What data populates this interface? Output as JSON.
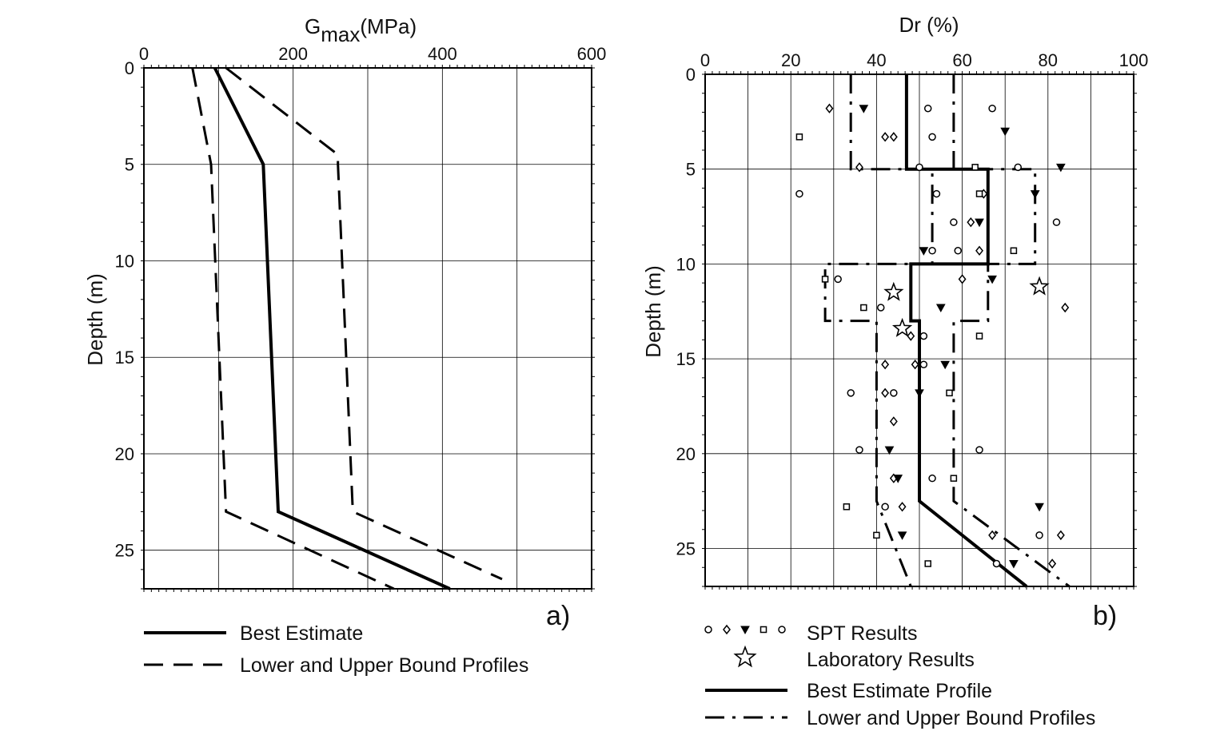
{
  "chart_data": [
    {
      "id": "a",
      "type": "line",
      "panel_label": "a)",
      "xlabel": {
        "main": "G",
        "sub": "max",
        "units": "(MPa)"
      },
      "ylabel": "Depth (m)",
      "xlim": [
        0,
        600
      ],
      "ylim": [
        0,
        27
      ],
      "xticks": [
        0,
        200,
        400,
        600
      ],
      "yticks": [
        0,
        5,
        10,
        15,
        20,
        25
      ],
      "grid": true,
      "series": [
        {
          "name": "Best Estimate",
          "style": "solid",
          "points": [
            [
              95,
              0
            ],
            [
              160,
              5
            ],
            [
              180,
              23
            ],
            [
              410,
              27
            ]
          ]
        },
        {
          "name": "Lower Bound Profile",
          "style": "dashed",
          "points": [
            [
              65,
              0
            ],
            [
              90,
              5
            ],
            [
              110,
              23
            ],
            [
              335,
              27
            ]
          ]
        },
        {
          "name": "Upper Bound Profile",
          "style": "dashed",
          "points": [
            [
              110,
              0
            ],
            [
              260,
              4.5
            ],
            [
              260,
              5
            ],
            [
              280,
              23
            ],
            [
              480,
              26.5
            ]
          ]
        }
      ],
      "legend": [
        {
          "label": "Best Estimate",
          "style": "solid"
        },
        {
          "label": "Lower and Upper Bound Profiles",
          "style": "dashed"
        }
      ]
    },
    {
      "id": "b",
      "type": "scatter",
      "panel_label": "b)",
      "xlabel": "Dr (%)",
      "ylabel": "Depth (m)",
      "xlim": [
        0,
        100
      ],
      "ylim": [
        0,
        27
      ],
      "xticks": [
        0,
        20,
        40,
        60,
        80,
        100
      ],
      "yticks": [
        0,
        5,
        10,
        15,
        20,
        25
      ],
      "grid": true,
      "best_estimate": [
        [
          47,
          0
        ],
        [
          47,
          5
        ],
        [
          66,
          5
        ],
        [
          66,
          10
        ],
        [
          48,
          10
        ],
        [
          48,
          13
        ],
        [
          50,
          13
        ],
        [
          50,
          22.5
        ],
        [
          75,
          27
        ]
      ],
      "lower_bound": [
        [
          34,
          0
        ],
        [
          34,
          5
        ],
        [
          53,
          5
        ],
        [
          53,
          10
        ],
        [
          28,
          10
        ],
        [
          28,
          13
        ],
        [
          40,
          13
        ],
        [
          40,
          22.5
        ],
        [
          48,
          27
        ]
      ],
      "upper_bound": [
        [
          58,
          0
        ],
        [
          58,
          5
        ],
        [
          77,
          5
        ],
        [
          77,
          10
        ],
        [
          66,
          10
        ],
        [
          66,
          13
        ],
        [
          58,
          13
        ],
        [
          58,
          22.5
        ],
        [
          85,
          27
        ]
      ],
      "spt_results": {
        "circle": [
          [
            52,
            1.8
          ],
          [
            67,
            1.8
          ],
          [
            53,
            3.3
          ],
          [
            50,
            4.9
          ],
          [
            22,
            6.3
          ],
          [
            54,
            6.3
          ],
          [
            58,
            7.8
          ],
          [
            82,
            7.8
          ],
          [
            53,
            9.3
          ],
          [
            59,
            9.3
          ],
          [
            31,
            10.8
          ],
          [
            41,
            12.3
          ],
          [
            51,
            13.8
          ],
          [
            34,
            16.8
          ],
          [
            44,
            16.8
          ],
          [
            36,
            19.8
          ],
          [
            64,
            19.8
          ],
          [
            53,
            21.3
          ],
          [
            42,
            22.8
          ],
          [
            78,
            24.3
          ],
          [
            68,
            25.8
          ],
          [
            73,
            4.9
          ],
          [
            51,
            15.3
          ]
        ],
        "diamond": [
          [
            29,
            1.8
          ],
          [
            42,
            3.3
          ],
          [
            44,
            3.3
          ],
          [
            36,
            4.9
          ],
          [
            65,
            6.3
          ],
          [
            62,
            7.8
          ],
          [
            64,
            9.3
          ],
          [
            60,
            10.8
          ],
          [
            84,
            12.3
          ],
          [
            48,
            13.8
          ],
          [
            42,
            15.3
          ],
          [
            42,
            16.8
          ],
          [
            44,
            18.3
          ],
          [
            44,
            21.3
          ],
          [
            46,
            22.8
          ],
          [
            67,
            24.3
          ],
          [
            81,
            25.8
          ],
          [
            83,
            24.3
          ],
          [
            49,
            15.3
          ]
        ],
        "triangle": [
          [
            37,
            1.8
          ],
          [
            70,
            3.0
          ],
          [
            83,
            4.9
          ],
          [
            77,
            6.3
          ],
          [
            64,
            7.8
          ],
          [
            51,
            9.3
          ],
          [
            67,
            10.8
          ],
          [
            55,
            12.3
          ],
          [
            56,
            15.3
          ],
          [
            50,
            16.8
          ],
          [
            43,
            19.8
          ],
          [
            45,
            21.3
          ],
          [
            78,
            22.8
          ],
          [
            46,
            24.3
          ],
          [
            72,
            25.8
          ]
        ],
        "square": [
          [
            22,
            3.3
          ],
          [
            63,
            4.9
          ],
          [
            64,
            6.3
          ],
          [
            72,
            9.3
          ],
          [
            28,
            10.8
          ],
          [
            37,
            12.3
          ],
          [
            64,
            13.8
          ],
          [
            57,
            16.8
          ],
          [
            58,
            21.3
          ],
          [
            33,
            22.8
          ],
          [
            40,
            24.3
          ],
          [
            52,
            25.8
          ]
        ]
      },
      "laboratory_results": [
        [
          44,
          11.5
        ],
        [
          78,
          11.2
        ],
        [
          46,
          13.4
        ]
      ],
      "legend": [
        {
          "label": "SPT Results",
          "symbol": "circle diamond triangle square circle"
        },
        {
          "label": "Laboratory Results",
          "symbol": "star"
        },
        {
          "label": "Best Estimate Profile",
          "style": "solid"
        },
        {
          "label": "Lower and Upper Bound Profiles",
          "style": "dash-dot"
        }
      ]
    }
  ]
}
